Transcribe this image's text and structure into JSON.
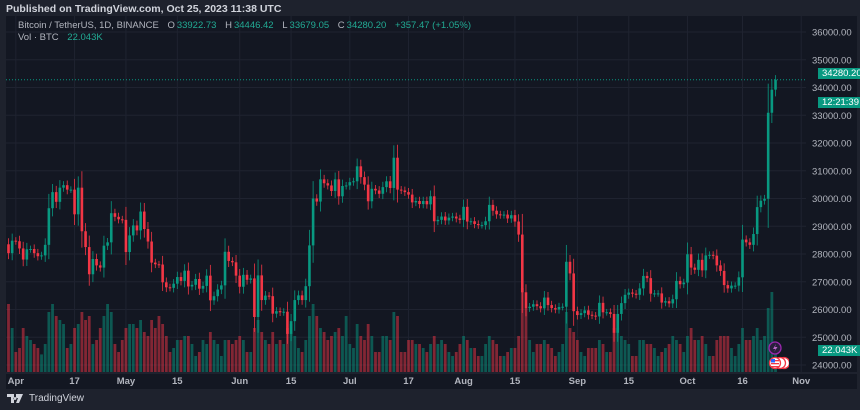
{
  "published": "Published on TradingView.com, Oct 25, 2023 11:38 UTC",
  "legend": {
    "symbol": "Bitcoin / TetherUS, 1D, BINANCE",
    "o_label": "O",
    "o": "33922.73",
    "h_label": "H",
    "h": "34446.42",
    "l_label": "L",
    "l": "33679.05",
    "c_label": "C",
    "c": "34280.20",
    "change": "+357.47 (+1.05%)",
    "vol_label": "Vol · BTC",
    "vol": "22.043K"
  },
  "price_badge": {
    "price": "34280.20",
    "countdown": "12:21:39"
  },
  "volume_badge": "22.043K",
  "brand": "TradingView",
  "colors": {
    "up": "#089981",
    "down": "#f23645",
    "background": "#131722",
    "grid": "#1f2330",
    "text": "#b2b5be"
  },
  "chart_data": {
    "type": "candlestick",
    "symbol": "BTCUSDT",
    "interval": "1D",
    "y_axis": {
      "ticks": [
        "36000.00",
        "35000.00",
        "34000.00",
        "33000.00",
        "32000.00",
        "31000.00",
        "30000.00",
        "29000.00",
        "28000.00",
        "27000.00",
        "26000.00",
        "25000.00",
        "24000.00"
      ],
      "range": [
        24000,
        36000
      ]
    },
    "x_axis": {
      "ticks": [
        {
          "label": "Apr",
          "date": "2023-04-01"
        },
        {
          "label": "17",
          "date": "2023-04-17"
        },
        {
          "label": "May",
          "date": "2023-05-01"
        },
        {
          "label": "15",
          "date": "2023-05-15"
        },
        {
          "label": "Jun",
          "date": "2023-06-01"
        },
        {
          "label": "15",
          "date": "2023-06-15"
        },
        {
          "label": "Jul",
          "date": "2023-07-01"
        },
        {
          "label": "17",
          "date": "2023-07-17"
        },
        {
          "label": "Aug",
          "date": "2023-08-01"
        },
        {
          "label": "15",
          "date": "2023-08-15"
        },
        {
          "label": "Sep",
          "date": "2023-09-01"
        },
        {
          "label": "15",
          "date": "2023-09-15"
        },
        {
          "label": "Oct",
          "date": "2023-10-01"
        },
        {
          "label": "16",
          "date": "2023-10-16"
        },
        {
          "label": "Nov",
          "date": "2023-11-01"
        }
      ]
    },
    "grid": true,
    "first_open": 28350,
    "last_candle": {
      "open": 33922.73,
      "high": 34446.42,
      "low": 33679.05,
      "close": 34280.2
    },
    "volume_unit": "K BTC",
    "months": [
      {
        "month": "2023-03",
        "first_day": 30,
        "close": [
          28030,
          28480
        ],
        "volume": [
          85,
          55
        ]
      },
      {
        "month": "2023-04",
        "first_day": 1,
        "close": [
          28460,
          28200,
          27800,
          28170,
          28180,
          28030,
          27920,
          27950,
          28330,
          29650,
          30230,
          29880,
          30390,
          30480,
          30320,
          30320,
          29430,
          30390,
          28820,
          28250,
          27270,
          27820,
          27590,
          27510,
          28300,
          28420,
          29470,
          29340,
          29250,
          29230
        ],
        "volume": [
          25,
          30,
          55,
          45,
          40,
          35,
          30,
          22,
          35,
          75,
          85,
          70,
          65,
          60,
          30,
          35,
          55,
          60,
          75,
          65,
          70,
          35,
          40,
          55,
          70,
          85,
          75,
          35,
          25,
          40
        ]
      },
      {
        "month": "2023-05",
        "first_day": 1,
        "close": [
          28070,
          28670,
          29030,
          28850,
          29530,
          28900,
          28450,
          27690,
          27630,
          27620,
          26980,
          26800,
          26780,
          26930,
          27170,
          27030,
          27400,
          26830,
          26890,
          27100,
          26750,
          26850,
          27220,
          26330,
          26480,
          26720,
          26870,
          28080,
          27750,
          27700,
          27220
        ],
        "volume": [
          55,
          60,
          60,
          55,
          65,
          50,
          45,
          65,
          55,
          70,
          60,
          45,
          25,
          30,
          40,
          40,
          45,
          45,
          35,
          20,
          25,
          40,
          35,
          50,
          40,
          35,
          20,
          40,
          40,
          35,
          40
        ]
      },
      {
        "month": "2023-06",
        "first_day": 1,
        "close": [
          26820,
          27250,
          27070,
          27120,
          25730,
          27230,
          26340,
          26500,
          26480,
          25850,
          25940,
          25900,
          25920,
          25120,
          25580,
          26340,
          26510,
          26340,
          26840,
          28310,
          30000,
          29890,
          30690,
          30550,
          30470,
          30270,
          30690,
          30080,
          30450,
          30470
        ],
        "volume": [
          45,
          40,
          25,
          25,
          55,
          65,
          50,
          40,
          35,
          50,
          35,
          40,
          35,
          55,
          60,
          45,
          30,
          25,
          40,
          70,
          85,
          70,
          55,
          50,
          40,
          45,
          50,
          55,
          45,
          70
        ]
      },
      {
        "month": "2023-07",
        "first_day": 1,
        "close": [
          30590,
          30620,
          31160,
          30770,
          30500,
          29900,
          30350,
          30290,
          30170,
          30410,
          30620,
          30380,
          31470,
          30320,
          30290,
          30230,
          30140,
          29860,
          29910,
          29800,
          29910,
          29790,
          30080,
          29180,
          29230,
          29350,
          29210,
          29310,
          29350,
          29280,
          29230
        ],
        "volume": [
          35,
          30,
          60,
          45,
          40,
          60,
          45,
          25,
          25,
          45,
          45,
          40,
          75,
          70,
          25,
          25,
          40,
          40,
          35,
          35,
          30,
          25,
          35,
          45,
          35,
          40,
          35,
          25,
          20,
          25,
          35
        ]
      },
      {
        "month": "2023-08",
        "first_day": 1,
        "close": [
          29700,
          29170,
          29180,
          29080,
          29040,
          29040,
          29180,
          29770,
          29560,
          29430,
          29400,
          29420,
          29280,
          29400,
          29170,
          28700,
          26620,
          26050,
          26100,
          26190,
          26120,
          26040,
          26430,
          26160,
          26050,
          26000,
          26090,
          26100,
          27720,
          27300,
          25940
        ],
        "volume": [
          45,
          40,
          30,
          30,
          20,
          20,
          35,
          45,
          40,
          35,
          20,
          20,
          25,
          30,
          30,
          45,
          105,
          80,
          40,
          25,
          35,
          35,
          40,
          35,
          30,
          20,
          25,
          35,
          75,
          55,
          50
        ]
      },
      {
        "month": "2023-09",
        "first_day": 1,
        "close": [
          25800,
          25870,
          25970,
          25810,
          25780,
          25750,
          26240,
          25900,
          25900,
          25840,
          25160,
          25840,
          26230,
          26530,
          26610,
          26570,
          26530,
          26760,
          27210,
          27130,
          26570,
          26580,
          26580,
          26250,
          26300,
          26220,
          26370,
          27030,
          26910,
          26970
        ],
        "volume": [
          40,
          25,
          20,
          30,
          30,
          30,
          40,
          35,
          25,
          25,
          55,
          55,
          45,
          40,
          35,
          20,
          20,
          40,
          40,
          35,
          35,
          30,
          20,
          25,
          30,
          35,
          45,
          40,
          35,
          25
        ]
      },
      {
        "month": "2023-10",
        "first_day": 1,
        "close": [
          27990,
          27510,
          27430,
          27790,
          27410,
          27950,
          27970,
          27940,
          27590,
          27390,
          26880,
          26760,
          26860,
          26860,
          27160,
          28520,
          28420,
          28330,
          28720,
          29690,
          29920,
          29990,
          33090,
          33920,
          34280.2
        ],
        "volume": [
          45,
          55,
          40,
          40,
          45,
          35,
          20,
          20,
          40,
          45,
          45,
          45,
          30,
          20,
          35,
          55,
          40,
          40,
          45,
          55,
          40,
          45,
          80,
          100,
          22.043
        ]
      }
    ]
  }
}
